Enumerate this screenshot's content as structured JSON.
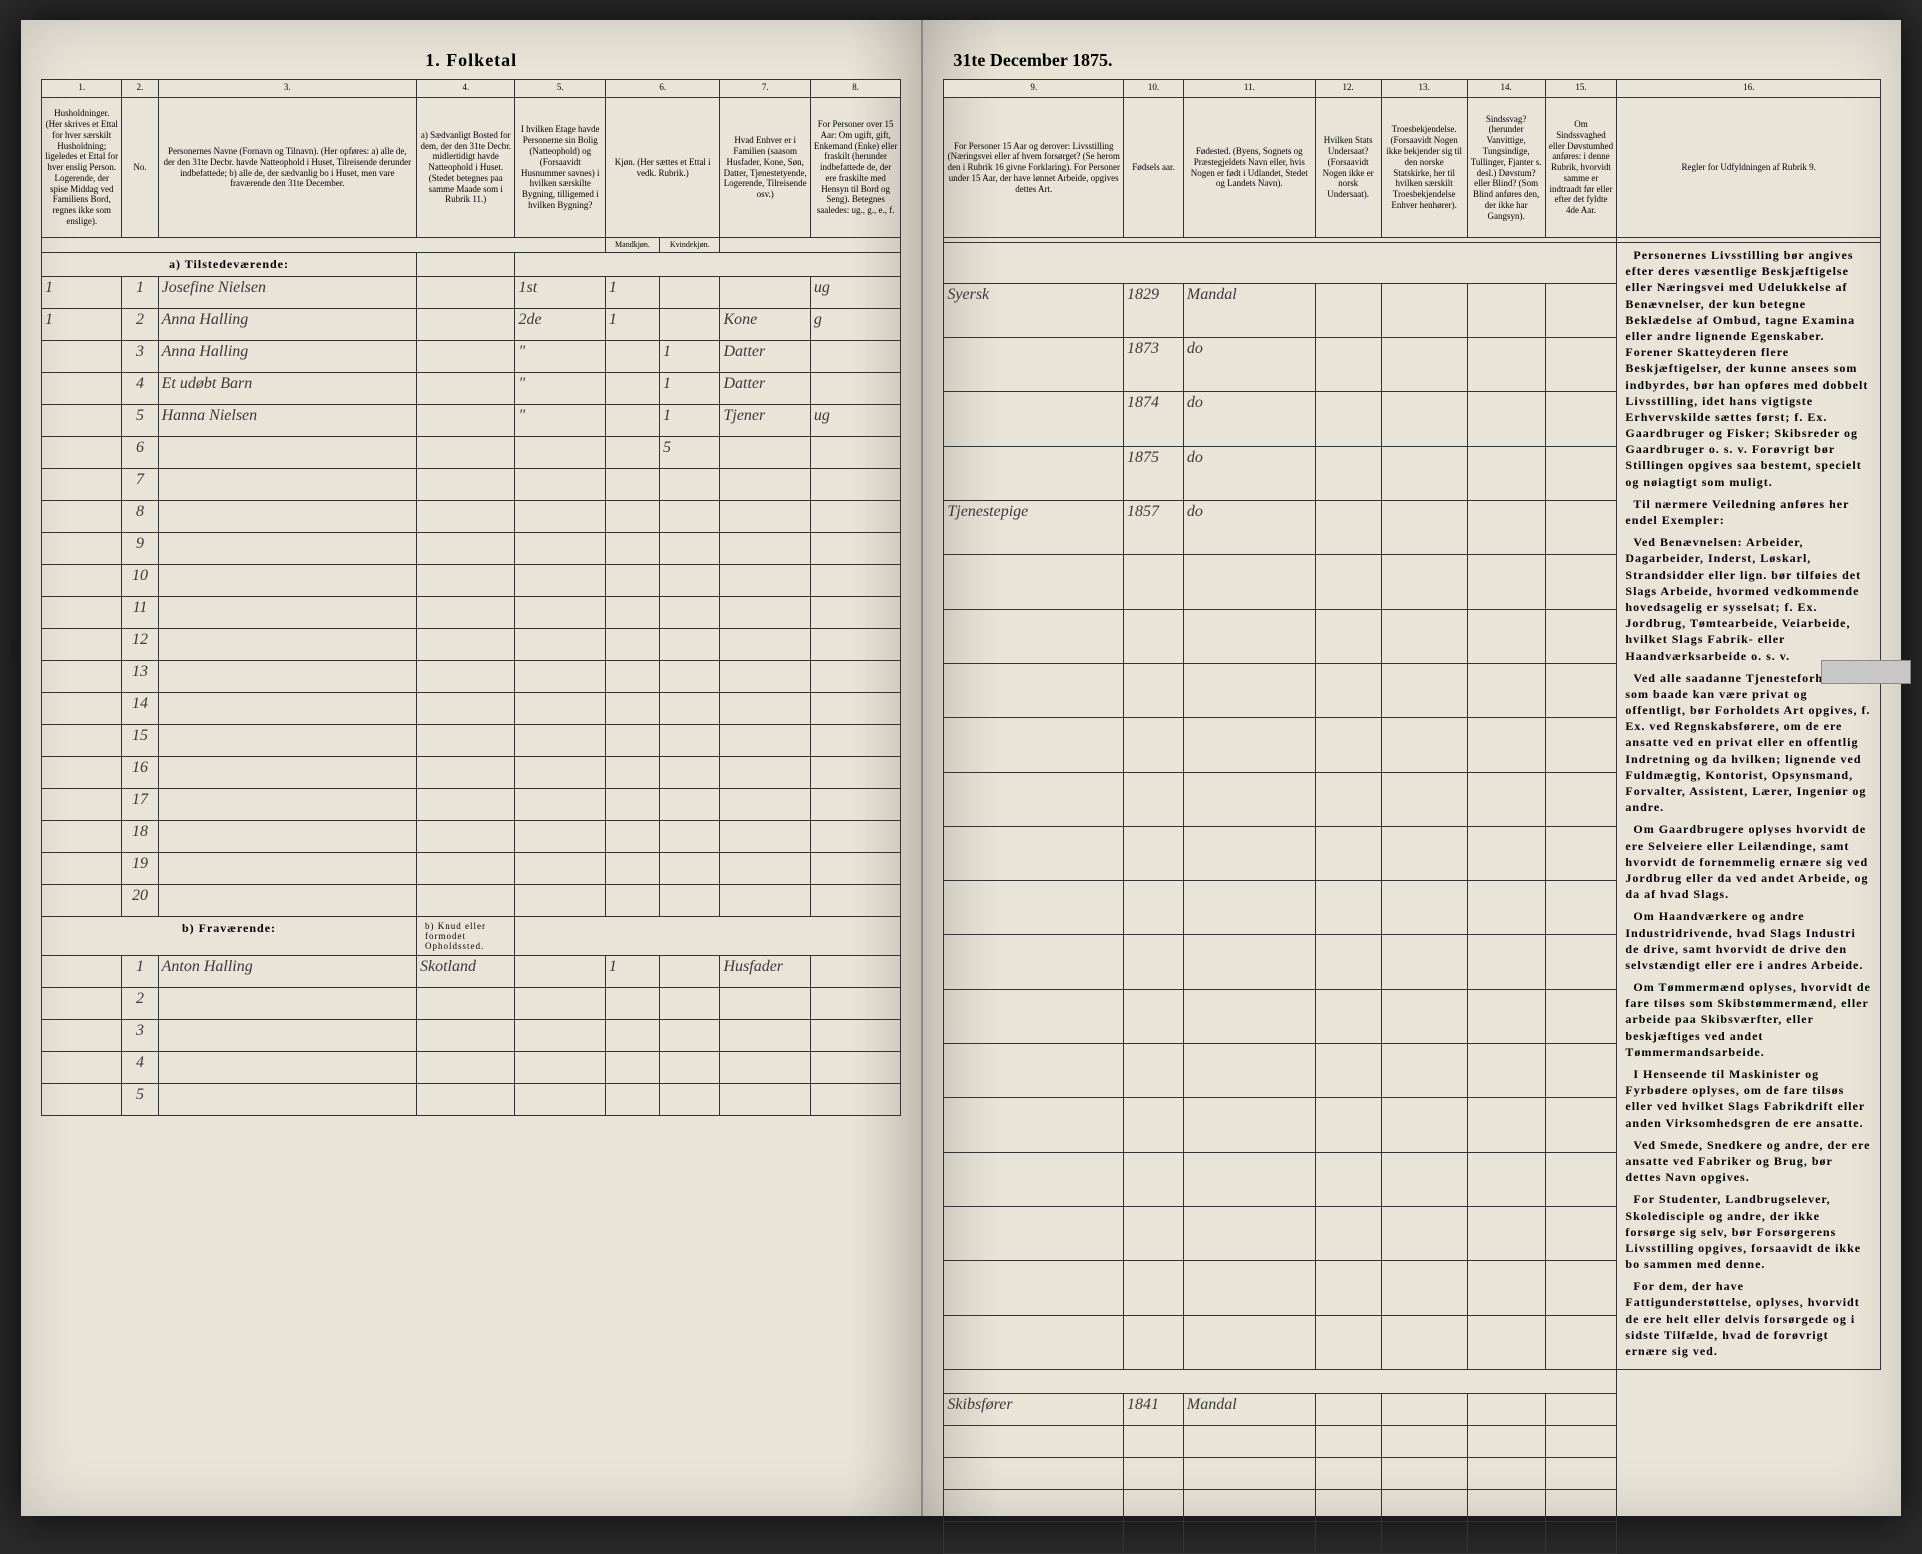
{
  "title_left": "1. Folketal",
  "title_right": "31te December 1875.",
  "columns": {
    "c1": "1.",
    "c2": "2.",
    "c3": "3.",
    "c4": "4.",
    "c5": "5.",
    "c6": "6.",
    "c7": "7.",
    "c8": "8.",
    "c9": "9.",
    "c10": "10.",
    "c11": "11.",
    "c12": "12.",
    "c13": "13.",
    "c14": "14.",
    "c15": "15.",
    "c16": "16."
  },
  "headers": {
    "h1": "Husholdninger. (Her skrives et Ettal for hver særskilt Husholdning; ligeledes et Ettal for hver enslig Person.\n\nLogerende, der spise Middag ved Familiens Bord, regnes ikke som enslige).",
    "h2": "No.",
    "h3": "Personernes Navne (Fornavn og Tilnavn).\n(Her opføres:\na) alle de, der den 31te Decbr. havde Natteophold i Huset, Tilreisende derunder indbefattede;\nb) alle de, der sædvanlig bo i Huset, men vare fraværende den 31te December.",
    "h4": "a) Sædvanligt Bosted for dem, der den 31te Decbr. midlertidigt havde Natteophold i Huset.\n(Stedet betegnes paa samme Maade som i Rubrik 11.)",
    "h5": "I hvilken Etage havde Personerne sin Bolig (Natteophold) og (Forsaavidt Husnummer savnes) i hvilken særskilte Bygning, tilligemed i hvilken Bygning?",
    "h6a": "Kjøn. (Her sættes et Ettal i vedk. Rubrik.)",
    "h6b": "Mandkjøn.",
    "h6c": "Kvindekjøn.",
    "h7": "Hvad Enhver er i Familien (saasom Husfader, Kone, Søn, Datter, Tjenestetyende, Logerende, Tilreisende osv.)",
    "h8": "For Personer over 15 Aar: Om ugift, gift, Enkemand (Enke) eller fraskilt (herunder indbefattede de, der ere fraskilte med Hensyn til Bord og Seng).\nBetegnes saaledes: ug., g., e., f.",
    "h9": "For Personer 15 Aar og derover: Livsstilling (Næringsvei eller af hvem forsørget? (Se herom den i Rubrik 16 givne Forklaring).\nFor Personer under 15 Aar, der have lønnet Arbeide, opgives dettes Art.",
    "h10": "Fødsels aar.",
    "h11": "Fødested.\n(Byens, Sognets og Præstegjeldets Navn eller, hvis Nogen er født i Udlandet, Stedet og Landets Navn).",
    "h12": "Hvilken Stats Undersaat?\n(Forsaavidt Nogen ikke er norsk Undersaat).",
    "h13": "Troesbekjendelse.\n(Forsaavidt Nogen ikke bekjender sig til den norske Statskirke, her til hvilken særskilt Troesbekjendelse Enhver henhører).",
    "h14": "Sindssvag? (herunder Vanvittige, Tungsindige, Tullinger, Fjanter s. desl.)\nDøvstum? eller Blind? (Som Blind anføres den, der ikke har Gangsyn).",
    "h15": "Om Sindssvaghed eller Døvstumhed anføres: i denne Rubrik, hvorvidt samme er indtraadt før eller efter det fyldte 4de Aar.",
    "h16": "Regler for Udfyldningen af Rubrik 9."
  },
  "sections": {
    "present": "a) Tilstedeværende:",
    "absent": "b) Fraværende:",
    "absent_col4": "b) Knud eller formodet Opholdssted."
  },
  "rows_present": [
    {
      "n": "1",
      "hh": "1",
      "name": "Josefine Nielsen",
      "col4": "",
      "col5": "1st",
      "m": "1",
      "k": "",
      "fam": "",
      "status": "ug",
      "occ": "Syersk",
      "year": "1829",
      "place": "Mandal"
    },
    {
      "n": "2",
      "hh": "1",
      "name": "Anna Halling",
      "col4": "",
      "col5": "2de",
      "m": "1",
      "k": "",
      "fam": "Kone",
      "status": "g",
      "occ": "",
      "year": "1873",
      "place": "do"
    },
    {
      "n": "3",
      "hh": "",
      "name": "Anna Halling",
      "col4": "",
      "col5": "\"",
      "m": "",
      "k": "1",
      "fam": "Datter",
      "status": "",
      "occ": "",
      "year": "1874",
      "place": "do"
    },
    {
      "n": "4",
      "hh": "",
      "name": "Et udøbt Barn",
      "col4": "",
      "col5": "\"",
      "m": "",
      "k": "1",
      "fam": "Datter",
      "status": "",
      "occ": "",
      "year": "1875",
      "place": "do"
    },
    {
      "n": "5",
      "hh": "",
      "name": "Hanna Nielsen",
      "col4": "",
      "col5": "\"",
      "m": "",
      "k": "1",
      "fam": "Tjener",
      "status": "ug",
      "occ": "Tjenestepige",
      "year": "1857",
      "place": "do"
    },
    {
      "n": "6",
      "hh": "",
      "name": "",
      "col4": "",
      "col5": "",
      "m": "",
      "k": "5",
      "fam": "",
      "status": "",
      "occ": "",
      "year": "",
      "place": ""
    },
    {
      "n": "7"
    },
    {
      "n": "8"
    },
    {
      "n": "9"
    },
    {
      "n": "10"
    },
    {
      "n": "11"
    },
    {
      "n": "12"
    },
    {
      "n": "13"
    },
    {
      "n": "14"
    },
    {
      "n": "15"
    },
    {
      "n": "16"
    },
    {
      "n": "17"
    },
    {
      "n": "18"
    },
    {
      "n": "19"
    },
    {
      "n": "20"
    }
  ],
  "rows_absent": [
    {
      "n": "1",
      "hh": "",
      "name": "Anton Halling",
      "col4": "Skotland",
      "col5": "",
      "m": "1",
      "k": "",
      "fam": "Husfader",
      "status": "",
      "occ": "Skibsfører",
      "year": "1841",
      "place": "Mandal"
    },
    {
      "n": "2"
    },
    {
      "n": "3"
    },
    {
      "n": "4"
    },
    {
      "n": "5"
    }
  ],
  "sidetext": {
    "p1": "Personernes Livsstilling bør angives efter deres væsentlige Beskjæftigelse eller Næringsvei med Udelukkelse af Benævnelser, der kun betegne Beklædelse af Ombud, tagne Examina eller andre lignende Egenskaber. Forener Skatteyderen flere Beskjæftigelser, der kunne ansees som indbyrdes, bør han opføres med dobbelt Livsstilling, idet hans vigtigste Erhvervskilde sættes først; f. Ex. Gaardbruger og Fisker; Skibsreder og Gaardbruger o. s. v. Forøvrigt bør Stillingen opgives saa bestemt, specielt og nøiagtigt som muligt.",
    "p2": "Til nærmere Veiledning anføres her endel Exempler:",
    "p3": "Ved Benævnelsen: Arbeider, Dagarbeider, Inderst, Løskarl, Strandsidder eller lign. bør tilføies det Slags Arbeide, hvormed vedkommende hovedsagelig er sysselsat; f. Ex. Jordbrug, Tømtearbeide, Veiarbeide, hvilket Slags Fabrik- eller Haandværksarbeide o. s. v.",
    "p4": "Ved alle saadanne Tjenesteforhold, som baade kan være privat og offentligt, bør Forholdets Art opgives, f. Ex. ved Regnskabsførere, om de ere ansatte ved en privat eller en offentlig Indretning og da hvilken; lignende ved Fuldmægtig, Kontorist, Opsynsmand, Forvalter, Assistent, Lærer, Ingeniør og andre.",
    "p5": "Om Gaardbrugere oplyses hvorvidt de ere Selveiere eller Leilændinge, samt hvorvidt de fornemmelig ernære sig ved Jordbrug eller da ved andet Arbeide, og da af hvad Slags.",
    "p6": "Om Haandværkere og andre Industridrivende, hvad Slags Industri de drive, samt hvorvidt de drive den selvstændigt eller ere i andres Arbeide.",
    "p7": "Om Tømmermænd oplyses, hvorvidt de fare tilsøs som Skibstømmermænd, eller arbeide paa Skibsværfter, eller beskjæftiges ved andet Tømmermandsarbeide.",
    "p8": "I Henseende til Maskinister og Fyrbødere oplyses, om de fare tilsøs eller ved hvilket Slags Fabrikdrift eller anden Virksomhedsgren de ere ansatte.",
    "p9": "Ved Smede, Snedkere og andre, der ere ansatte ved Fabriker og Brug, bør dettes Navn opgives.",
    "p10": "For Studenter, Landbrugselever, Skoledisciple og andre, der ikke forsørge sig selv, bør Forsørgerens Livsstilling opgives, forsaavidt de ikke bo sammen med denne.",
    "p11": "For dem, der have Fattigunderstøttelse, oplyses, hvorvidt de ere helt eller delvis forsørgede og i sidste Tilfælde, hvad de forøvrigt ernære sig ved."
  }
}
